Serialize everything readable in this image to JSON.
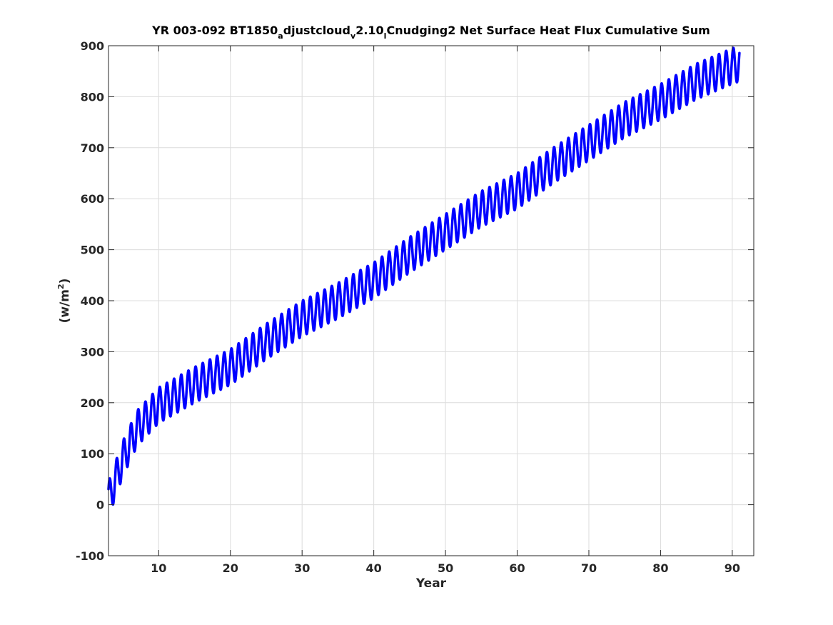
{
  "chart_data": {
    "type": "line",
    "title": {
      "part1": "YR 003-092 BT1850",
      "sub1": "a",
      "part2": "djustcloud",
      "sub2": "v",
      "part3": "2.10",
      "sub3": "l",
      "part4": "Cnudging2 Net Surface Heat Flux  Cumulative Sum"
    },
    "xlabel": "Year",
    "ylabel": {
      "base": "(w/m",
      "sup": "2",
      "close": ")"
    },
    "xlim": [
      3,
      93
    ],
    "ylim": [
      -100,
      900
    ],
    "xticks": [
      10,
      20,
      30,
      40,
      50,
      60,
      70,
      80,
      90
    ],
    "yticks": [
      -100,
      0,
      100,
      200,
      300,
      400,
      500,
      600,
      700,
      800,
      900
    ],
    "grid": true,
    "series": [
      {
        "color": "#0000ff",
        "line_width": 3.5,
        "x_start": 3.0,
        "x_end": 91.0,
        "samples_per_year": 12,
        "trend_points": [
          {
            "x": 3.0,
            "y": 10
          },
          {
            "x": 5.0,
            "y": 90
          },
          {
            "x": 7.0,
            "y": 150
          },
          {
            "x": 10.0,
            "y": 195
          },
          {
            "x": 15.0,
            "y": 235
          },
          {
            "x": 20.0,
            "y": 270
          },
          {
            "x": 25.0,
            "y": 320
          },
          {
            "x": 30.0,
            "y": 365
          },
          {
            "x": 35.0,
            "y": 400
          },
          {
            "x": 40.0,
            "y": 440
          },
          {
            "x": 45.0,
            "y": 490
          },
          {
            "x": 50.0,
            "y": 535
          },
          {
            "x": 55.0,
            "y": 580
          },
          {
            "x": 60.0,
            "y": 615
          },
          {
            "x": 65.0,
            "y": 665
          },
          {
            "x": 70.0,
            "y": 710
          },
          {
            "x": 75.0,
            "y": 755
          },
          {
            "x": 80.0,
            "y": 790
          },
          {
            "x": 85.0,
            "y": 830
          },
          {
            "x": 90.0,
            "y": 860
          },
          {
            "x": 91.0,
            "y": 865
          }
        ],
        "seasonal_half_amplitude": 35,
        "peak_phase_fraction": 0.15
      }
    ]
  }
}
